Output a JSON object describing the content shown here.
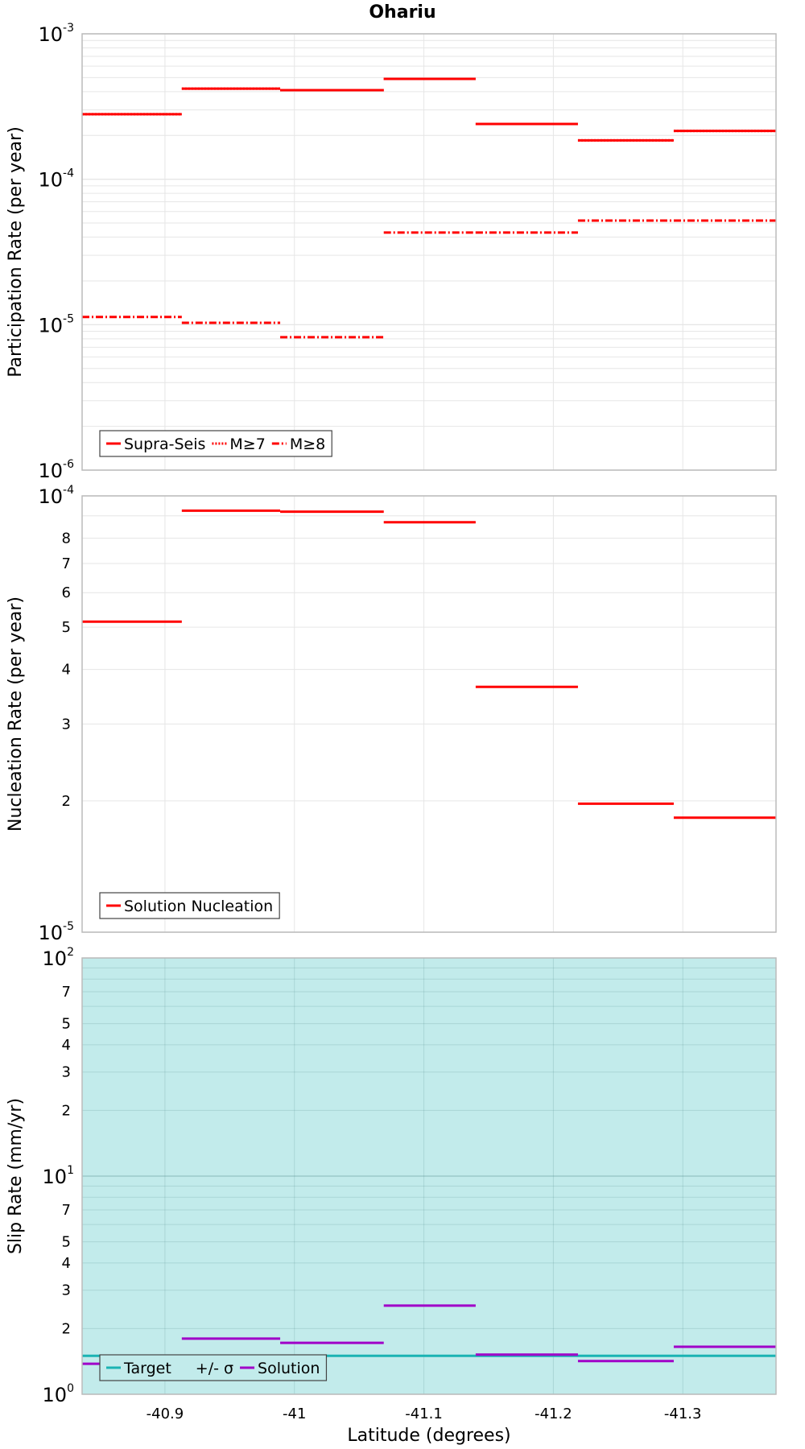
{
  "title": "Ohariu",
  "xlabel": "Latitude (degrees)",
  "colors": {
    "red": "#ff0000",
    "teal": "#1ab3b3",
    "band": "#c2ebeb",
    "purple": "#a000c8"
  },
  "chart_data": [
    {
      "type": "line",
      "ylabel": "Participation Rate (per year)",
      "yscale": "log",
      "xlim": [
        -40.836,
        -41.372
      ],
      "ylim": [
        1e-06,
        0.001
      ],
      "grid": true,
      "legend_position": "bottom-left",
      "x_ticks": [
        -40.9,
        -41,
        -41.1,
        -41.2,
        -41.3
      ],
      "y_tick_labels": [
        {
          "base": "10",
          "exp": "-3",
          "value": 0.001
        },
        {
          "base": "10",
          "exp": "-4",
          "value": 0.0001
        },
        {
          "base": "10",
          "exp": "-5",
          "value": 1e-05
        },
        {
          "base": "10",
          "exp": "-6",
          "value": 1e-06
        }
      ],
      "series": [
        {
          "name": "Supra-Seis",
          "style": "solid",
          "color": "#ff0000",
          "segments": [
            [
              -40.836,
              -40.913,
              0.00028
            ],
            [
              -40.913,
              -40.989,
              0.00042
            ],
            [
              -40.989,
              -41.069,
              0.00041
            ],
            [
              -41.069,
              -41.14,
              0.00049
            ],
            [
              -41.14,
              -41.219,
              0.00024
            ],
            [
              -41.219,
              -41.293,
              0.000185
            ],
            [
              -41.293,
              -41.372,
              0.000215
            ]
          ]
        },
        {
          "name": "M≥7",
          "style": "dotted",
          "color": "#ff0000",
          "segments": [
            [
              -40.836,
              -40.913,
              0.00028
            ],
            [
              -40.913,
              -40.989,
              0.00042
            ],
            [
              -40.989,
              -41.069,
              0.00041
            ],
            [
              -41.069,
              -41.14,
              0.00049
            ],
            [
              -41.14,
              -41.219,
              0.00024
            ],
            [
              -41.219,
              -41.293,
              0.000185
            ],
            [
              -41.293,
              -41.372,
              0.000215
            ]
          ]
        },
        {
          "name": "M≥8",
          "style": "dashdot",
          "color": "#ff0000",
          "segments": [
            [
              -40.836,
              -40.913,
              1.13e-05
            ],
            [
              -40.913,
              -40.989,
              1.03e-05
            ],
            [
              -40.989,
              -41.069,
              8.2e-06
            ],
            [
              -41.069,
              -41.14,
              4.3e-05
            ],
            [
              -41.14,
              -41.219,
              4.3e-05
            ],
            [
              -41.219,
              -41.293,
              5.2e-05
            ],
            [
              -41.293,
              -41.372,
              5.2e-05
            ]
          ]
        }
      ]
    },
    {
      "type": "line",
      "ylabel": "Nucleation Rate (per year)",
      "yscale": "log",
      "xlim": [
        -40.836,
        -41.372
      ],
      "ylim": [
        1e-05,
        0.0001
      ],
      "grid": true,
      "legend_position": "bottom-left",
      "x_ticks": [
        -40.9,
        -41,
        -41.1,
        -41.2,
        -41.3
      ],
      "y_tick_labels": [
        {
          "base": "10",
          "exp": "-4",
          "value": 0.0001
        },
        {
          "base": "10",
          "exp": "-5",
          "value": 1e-05
        }
      ],
      "y_minor_tick_labels": [
        {
          "label": "8",
          "value": 8e-05
        },
        {
          "label": "7",
          "value": 7e-05
        },
        {
          "label": "6",
          "value": 6e-05
        },
        {
          "label": "5",
          "value": 5e-05
        },
        {
          "label": "4",
          "value": 4e-05
        },
        {
          "label": "3",
          "value": 3e-05
        },
        {
          "label": "2",
          "value": 2e-05
        }
      ],
      "series": [
        {
          "name": "Solution Nucleation",
          "style": "solid",
          "color": "#ff0000",
          "segments": [
            [
              -40.836,
              -40.913,
              5.15e-05
            ],
            [
              -40.913,
              -40.989,
              9.25e-05
            ],
            [
              -40.989,
              -41.069,
              9.2e-05
            ],
            [
              -41.069,
              -41.14,
              8.7e-05
            ],
            [
              -41.14,
              -41.219,
              3.65e-05
            ],
            [
              -41.219,
              -41.293,
              1.97e-05
            ],
            [
              -41.293,
              -41.372,
              1.83e-05
            ]
          ]
        }
      ]
    },
    {
      "type": "line",
      "ylabel": "Slip Rate (mm/yr)",
      "yscale": "log",
      "xlim": [
        -40.836,
        -41.372
      ],
      "ylim": [
        1,
        100
      ],
      "grid": true,
      "legend_position": "bottom-left",
      "x_ticks": [
        -40.9,
        -41,
        -41.1,
        -41.2,
        -41.3
      ],
      "x_tick_labels": [
        "-40.9",
        "-41",
        "-41.1",
        "-41.2",
        "-41.3"
      ],
      "y_tick_labels": [
        {
          "base": "10",
          "exp": "2",
          "value": 100
        },
        {
          "base": "10",
          "exp": "1",
          "value": 10
        },
        {
          "base": "10",
          "exp": "0",
          "value": 1
        }
      ],
      "y_minor_tick_labels": [
        {
          "label": "7",
          "value": 70
        },
        {
          "label": "5",
          "value": 50
        },
        {
          "label": "4",
          "value": 40
        },
        {
          "label": "3",
          "value": 30
        },
        {
          "label": "2",
          "value": 20
        },
        {
          "label": "7",
          "value": 7
        },
        {
          "label": "5",
          "value": 5
        },
        {
          "label": "4",
          "value": 4
        },
        {
          "label": "3",
          "value": 3
        },
        {
          "label": "2",
          "value": 2
        }
      ],
      "band": {
        "name": "+/- σ",
        "color": "#c2ebeb",
        "low": 1,
        "high": 100
      },
      "series": [
        {
          "name": "Target",
          "style": "solid",
          "color": "#1ab3b3",
          "segments": [
            [
              -40.836,
              -41.372,
              1.5
            ]
          ]
        },
        {
          "name": "Solution",
          "style": "solid",
          "color": "#a000c8",
          "segments": [
            [
              -40.836,
              -40.913,
              1.38
            ],
            [
              -40.913,
              -40.989,
              1.8
            ],
            [
              -40.989,
              -41.069,
              1.72
            ],
            [
              -41.069,
              -41.14,
              2.55
            ],
            [
              -41.14,
              -41.219,
              1.52
            ],
            [
              -41.219,
              -41.293,
              1.42
            ],
            [
              -41.293,
              -41.372,
              1.65
            ]
          ]
        }
      ]
    }
  ],
  "legends": [
    [
      "Supra-Seis",
      "M≥7",
      "M≥8"
    ],
    [
      "Solution Nucleation"
    ],
    [
      "Target",
      "+/- σ",
      "Solution"
    ]
  ]
}
